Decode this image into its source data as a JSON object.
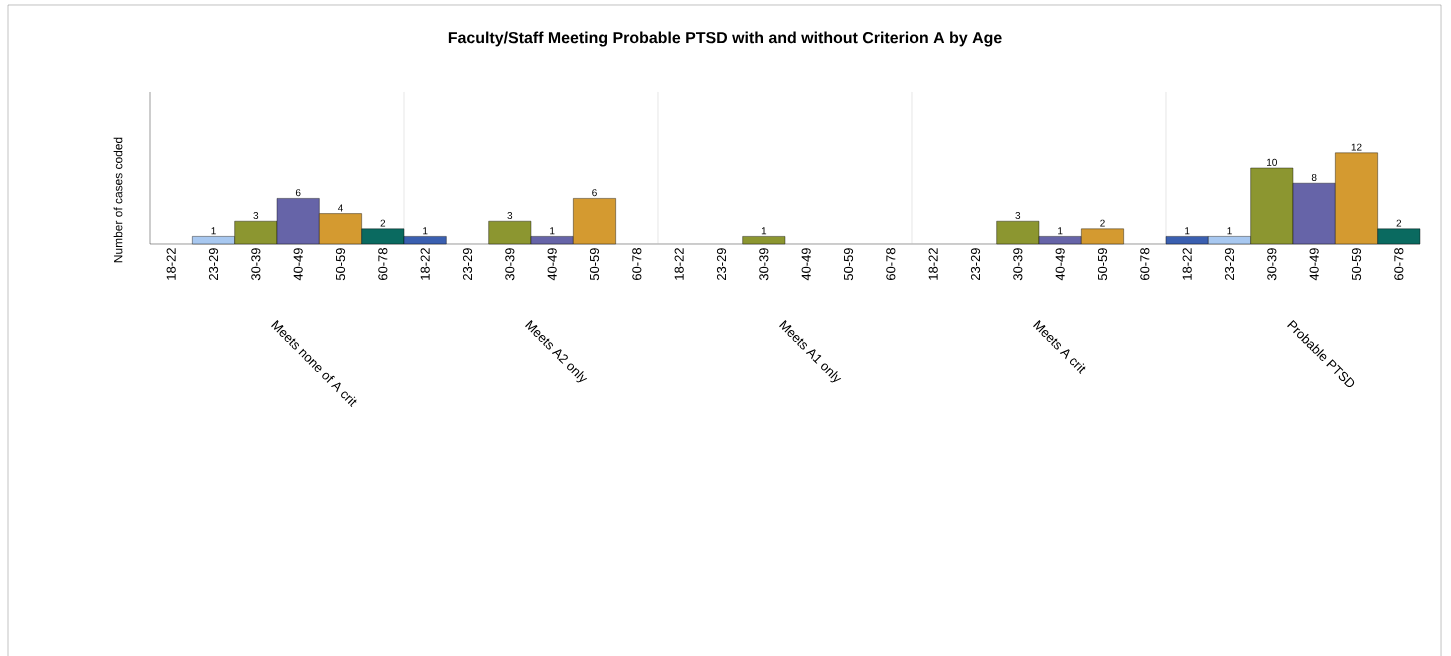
{
  "chart_data": {
    "type": "bar",
    "title": "Faculty/Staff Meeting Probable PTSD with and without Criterion A by Age",
    "ylabel": "Number of cases coded",
    "categories": [
      "18-22",
      "23-29",
      "30-39",
      "40-49",
      "50-59",
      "60-78",
      "18-22",
      "23-29",
      "30-39",
      "40-49",
      "50-59",
      "60-78",
      "18-22",
      "23-29",
      "30-39",
      "40-49",
      "50-59",
      "60-78",
      "18-22",
      "23-29",
      "30-39",
      "40-49",
      "50-59",
      "60-78",
      "18-22",
      "23-29",
      "30-39",
      "40-49",
      "50-59",
      "60-78"
    ],
    "values": [
      null,
      1,
      3,
      6,
      4,
      2,
      1,
      null,
      3,
      1,
      6,
      null,
      null,
      null,
      1,
      null,
      null,
      null,
      null,
      null,
      3,
      1,
      2,
      null,
      1,
      1,
      10,
      8,
      12,
      2
    ],
    "colors": [
      "#3a5fb0",
      "#a8c8f0",
      "#8c9630",
      "#6664a8",
      "#d49a30",
      "#0a6a60",
      "#3a5fb0",
      "#a8c8f0",
      "#8c9630",
      "#6664a8",
      "#d49a30",
      "#0a6a60",
      "#3a5fb0",
      "#a8c8f0",
      "#8c9630",
      "#6664a8",
      "#d49a30",
      "#0a6a60",
      "#3a5fb0",
      "#a8c8f0",
      "#8c9630",
      "#6664a8",
      "#d49a30",
      "#0a6a60",
      "#3a5fb0",
      "#a8c8f0",
      "#8c9630",
      "#6664a8",
      "#d49a30",
      "#0a6a60"
    ],
    "annotations": [
      "Meets none of A crit",
      "Meets A2 only",
      "Meets A1 only",
      "Meets A crit",
      "Probable PTSD"
    ],
    "ylim": [
      0,
      20
    ],
    "data_labels": true
  }
}
